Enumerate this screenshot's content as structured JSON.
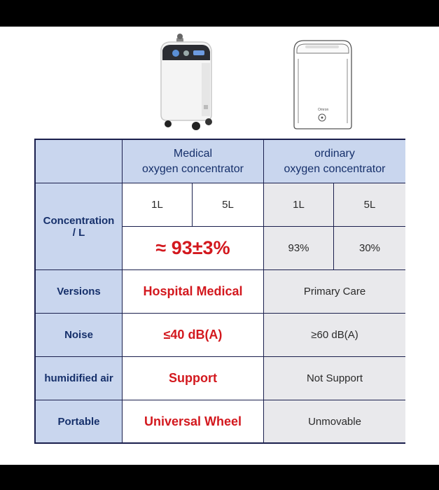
{
  "header": {
    "medical": "Medical\noxygen concentrator",
    "ordinary": "ordinary\noxygen concentrator"
  },
  "rows": {
    "concentration": {
      "label": "Concentration\n/ L",
      "med_1l": "1L",
      "med_5l": "5L",
      "ord_1l": "1L",
      "ord_5l": "5L",
      "med_value": "≈ 93±3%",
      "ord_1l_value": "93%",
      "ord_5l_value": "30%"
    },
    "versions": {
      "label": "Versions",
      "medical": "Hospital Medical",
      "ordinary": "Primary Care"
    },
    "noise": {
      "label": "Noise",
      "medical": "≤40 dB(A)",
      "ordinary": "≥60 dB(A)"
    },
    "humidified": {
      "label": "humidified air",
      "medical": "Support",
      "ordinary": "Not Support"
    },
    "portable": {
      "label": "Portable",
      "medical": "Universal Wheel",
      "ordinary": "Unmovable"
    }
  },
  "colors": {
    "header_bg": "#c9d6ee",
    "header_text": "#16306b",
    "highlight": "#d3181e",
    "ordinary_bg": "#e9e9ec",
    "border": "#1a1f4d"
  },
  "icons": [
    "medical-concentrator-image",
    "ordinary-concentrator-image"
  ]
}
